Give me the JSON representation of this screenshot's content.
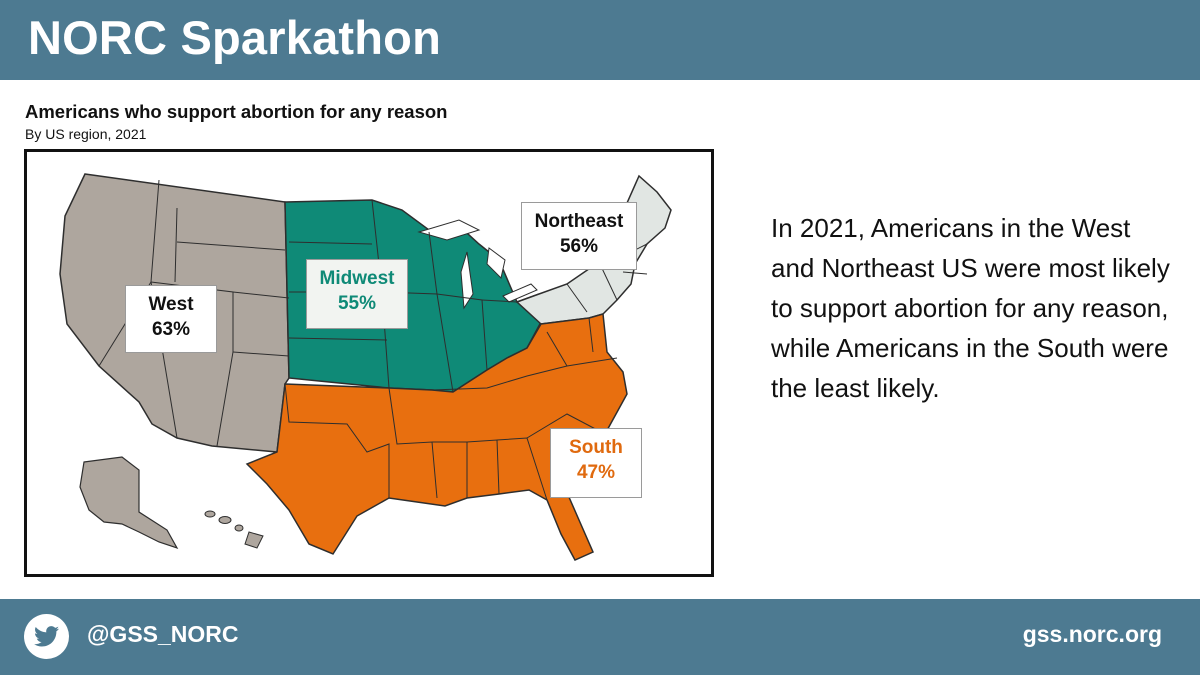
{
  "header": {
    "title": "NORC Sparkathon"
  },
  "chart": {
    "title": "Americans who support abortion for any reason",
    "subtitle": "By US region, 2021"
  },
  "chart_data": {
    "type": "map",
    "title": "Americans who support abortion for any reason",
    "subtitle": "By US region, 2021",
    "regions": [
      {
        "name": "West",
        "value": 63,
        "label": "63%",
        "color": "#aea69e"
      },
      {
        "name": "Midwest",
        "value": 55,
        "label": "55%",
        "color": "#0f8a77"
      },
      {
        "name": "Northeast",
        "value": 56,
        "label": "56%",
        "color": "#e1e6e3"
      },
      {
        "name": "South",
        "value": 47,
        "label": "47%",
        "color": "#e86f0f"
      }
    ]
  },
  "regions": {
    "west": {
      "name": "West",
      "pct": "63%"
    },
    "midwest": {
      "name": "Midwest",
      "pct": "55%"
    },
    "northeast": {
      "name": "Northeast",
      "pct": "56%"
    },
    "south": {
      "name": "South",
      "pct": "47%"
    }
  },
  "summary": "In 2021, Americans in the West and Northeast US were most likely to support abortion for any reason, while Americans in the South were the least likely.",
  "footer": {
    "twitter_handle": "@GSS_NORC",
    "site": "gss.norc.org",
    "icon": "twitter-icon"
  },
  "colors": {
    "bar": "#4d7a91",
    "west": "#aea69e",
    "midwest": "#0f8a77",
    "northeast": "#e1e6e3",
    "south": "#e86f0f"
  }
}
